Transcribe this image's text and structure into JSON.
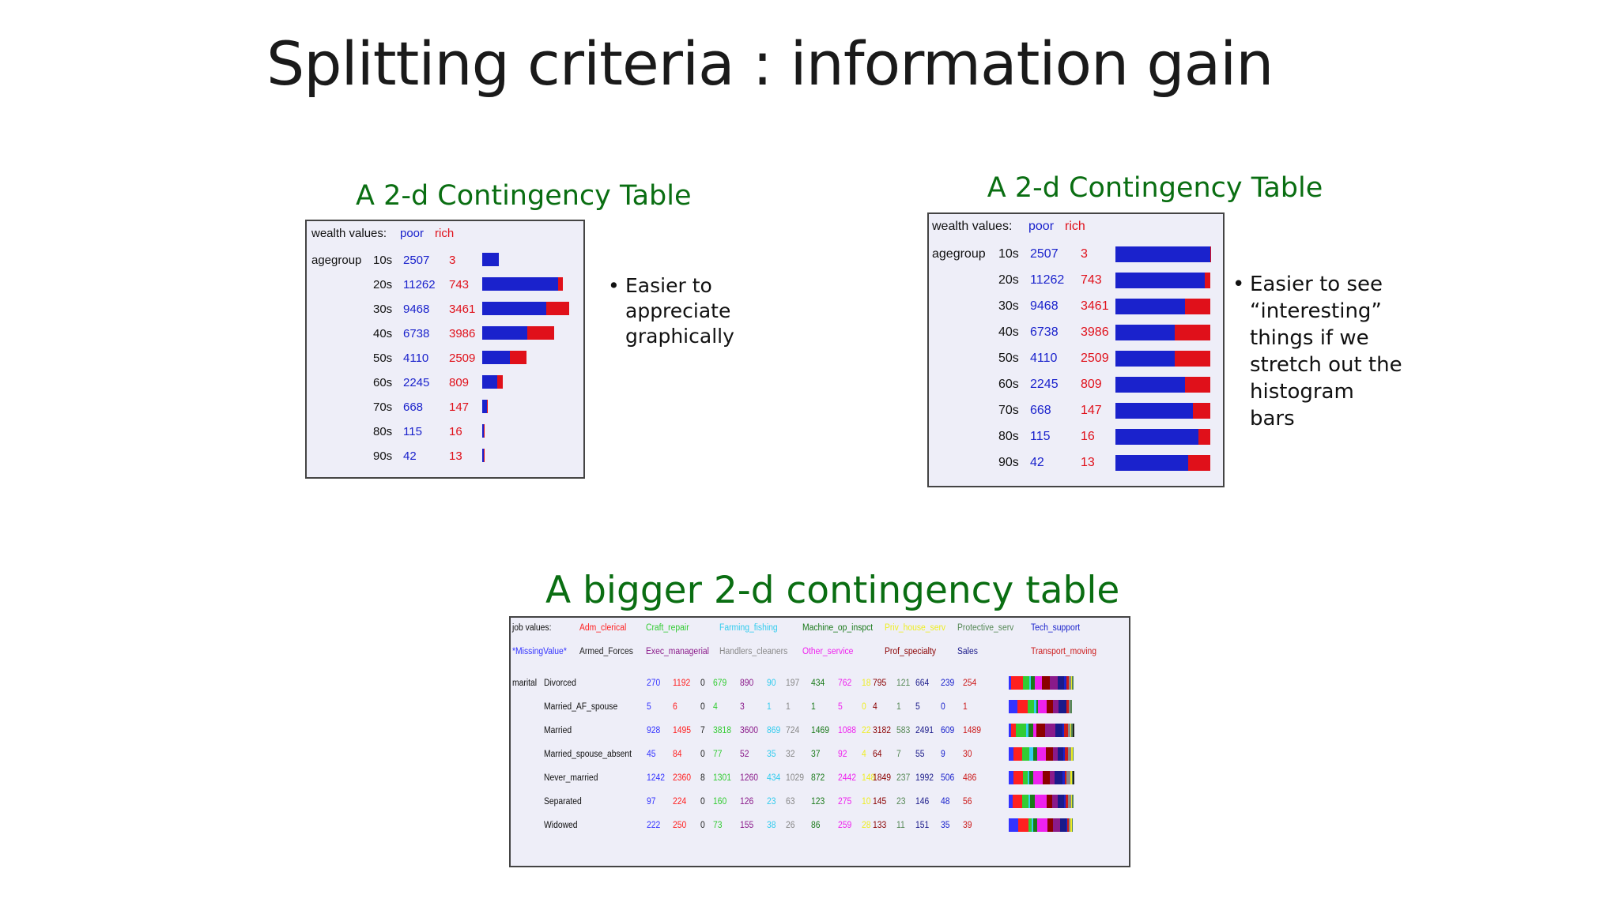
{
  "title": "Splitting criteria : information gain",
  "panel1": {
    "heading": "A 2-d Contingency Table",
    "header": {
      "label": "wealth values:",
      "col1": "poor",
      "col2": "rich"
    },
    "attribute": "agegroup",
    "rows": [
      {
        "label": "10s",
        "poor": 2507,
        "rich": 3
      },
      {
        "label": "20s",
        "poor": 11262,
        "rich": 743
      },
      {
        "label": "30s",
        "poor": 9468,
        "rich": 3461
      },
      {
        "label": "40s",
        "poor": 6738,
        "rich": 3986
      },
      {
        "label": "50s",
        "poor": 4110,
        "rich": 2509
      },
      {
        "label": "60s",
        "poor": 2245,
        "rich": 809
      },
      {
        "label": "70s",
        "poor": 668,
        "rich": 147
      },
      {
        "label": "80s",
        "poor": 115,
        "rich": 16
      },
      {
        "label": "90s",
        "poor": 42,
        "rich": 13
      }
    ],
    "bullets": [
      "Easier to\nappreciate\ngraphically"
    ]
  },
  "panel2": {
    "heading": "A 2-d Contingency Table",
    "header": {
      "label": "wealth values:",
      "col1": "poor",
      "col2": "rich"
    },
    "attribute": "agegroup",
    "rows": [
      {
        "label": "10s",
        "poor": 2507,
        "rich": 3
      },
      {
        "label": "20s",
        "poor": 11262,
        "rich": 743
      },
      {
        "label": "30s",
        "poor": 9468,
        "rich": 3461
      },
      {
        "label": "40s",
        "poor": 6738,
        "rich": 3986
      },
      {
        "label": "50s",
        "poor": 4110,
        "rich": 2509
      },
      {
        "label": "60s",
        "poor": 2245,
        "rich": 809
      },
      {
        "label": "70s",
        "poor": 668,
        "rich": 147
      },
      {
        "label": "80s",
        "poor": 115,
        "rich": 16
      },
      {
        "label": "90s",
        "poor": 42,
        "rich": 13
      }
    ],
    "bullets": [
      "Easier to see\n“interesting”\nthings if we\nstretch out the\nhistogram\nbars"
    ]
  },
  "panel3": {
    "heading": "A bigger 2-d contingency table",
    "header_label": "job values:",
    "attribute": "marital",
    "jobs": [
      {
        "name": "*MissingValue*",
        "color": "#3333ff"
      },
      {
        "name": "Adm_clerical",
        "color": "#ff2020"
      },
      {
        "name": "Armed_Forces",
        "color": "#222222"
      },
      {
        "name": "Craft_repair",
        "color": "#33cc33"
      },
      {
        "name": "Exec_managerial",
        "color": "#8a1a8a"
      },
      {
        "name": "Farming_fishing",
        "color": "#33ccee"
      },
      {
        "name": "Handlers_cleaners",
        "color": "#888888"
      },
      {
        "name": "Machine_op_inspct",
        "color": "#1a7a1a"
      },
      {
        "name": "Other_service",
        "color": "#ee22ee"
      },
      {
        "name": "Priv_house_serv",
        "color": "#eeee22"
      },
      {
        "name": "Prof_specialty",
        "color": "#8b0000"
      },
      {
        "name": "Protective_serv",
        "color": "#558855"
      },
      {
        "name": "Sales",
        "color": "#1a1a8a"
      },
      {
        "name": "Tech_support",
        "color": "#1a22cc"
      },
      {
        "name": "Transport_moving",
        "color": "#cc1a1a"
      }
    ],
    "rows": [
      {
        "label": "Divorced",
        "values": [
          270,
          1192,
          0,
          679,
          890,
          90,
          197,
          434,
          762,
          18,
          795,
          121,
          664,
          239,
          254
        ]
      },
      {
        "label": "Married_AF_spouse",
        "values": [
          5,
          6,
          0,
          4,
          3,
          1,
          1,
          1,
          5,
          0,
          4,
          1,
          5,
          0,
          1
        ]
      },
      {
        "label": "Married",
        "values": [
          928,
          1495,
          7,
          3818,
          3600,
          869,
          724,
          1469,
          1088,
          22,
          3182,
          583,
          2491,
          609,
          1489
        ]
      },
      {
        "label": "Married_spouse_absent",
        "values": [
          45,
          84,
          0,
          77,
          52,
          35,
          32,
          37,
          92,
          4,
          64,
          7,
          55,
          9,
          30
        ]
      },
      {
        "label": "Never_married",
        "values": [
          1242,
          2360,
          8,
          1301,
          1260,
          434,
          1029,
          872,
          2442,
          148,
          1849,
          237,
          1992,
          506,
          486
        ]
      },
      {
        "label": "Separated",
        "values": [
          97,
          224,
          0,
          160,
          126,
          23,
          63,
          123,
          275,
          10,
          145,
          23,
          146,
          48,
          56
        ]
      },
      {
        "label": "Widowed",
        "values": [
          222,
          250,
          0,
          73,
          155,
          38,
          26,
          86,
          259,
          28,
          133,
          11,
          151,
          35,
          39
        ]
      }
    ]
  },
  "colors": {
    "heading": "#0a6e12",
    "poor": "#1a22cc",
    "rich": "#e0101a",
    "table_bg": "#eeeef8"
  },
  "chart_data": [
    {
      "type": "bar",
      "categories": [
        "10s",
        "20s",
        "30s",
        "40s",
        "50s",
        "60s",
        "70s",
        "80s",
        "90s"
      ],
      "series": [
        {
          "name": "poor",
          "values": [
            2507,
            11262,
            9468,
            6738,
            4110,
            2245,
            668,
            115,
            42
          ]
        },
        {
          "name": "rich",
          "values": [
            3,
            743,
            3461,
            3986,
            2509,
            809,
            147,
            16,
            13
          ]
        }
      ],
      "stacked": true,
      "scale": "absolute"
    },
    {
      "type": "bar",
      "categories": [
        "10s",
        "20s",
        "30s",
        "40s",
        "50s",
        "60s",
        "70s",
        "80s",
        "90s"
      ],
      "series": [
        {
          "name": "poor",
          "values": [
            2507,
            11262,
            9468,
            6738,
            4110,
            2245,
            668,
            115,
            42
          ]
        },
        {
          "name": "rich",
          "values": [
            3,
            743,
            3461,
            3986,
            2509,
            809,
            147,
            16,
            13
          ]
        }
      ],
      "stacked": true,
      "scale": "normalized"
    }
  ]
}
